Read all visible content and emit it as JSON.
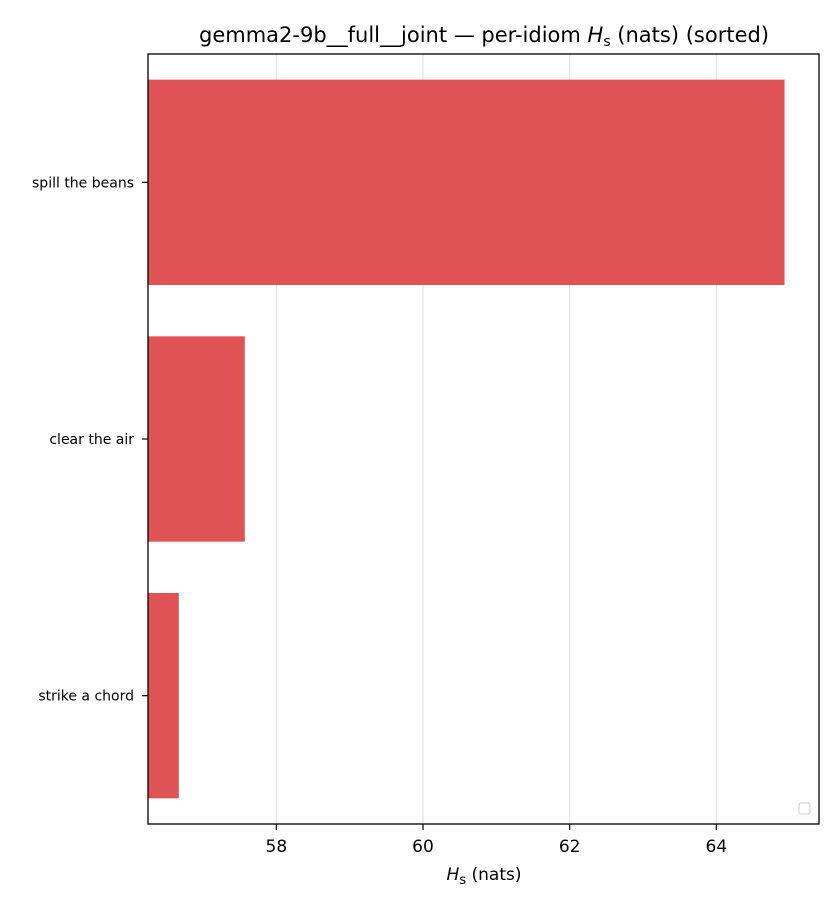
{
  "chart_data": {
    "type": "bar",
    "orientation": "horizontal",
    "title_main": "gemma2-9b__full__joint — per-idiom ",
    "title_sym": "H",
    "title_sub": "s",
    "title_tail": " (nats) (sorted)",
    "xlabel_sym": "H",
    "xlabel_sub": "s",
    "xlabel_tail": " (nats)",
    "categories": [
      "spill the beans",
      "clear the air",
      "strike a chord"
    ],
    "values": [
      64.93,
      57.57,
      56.67
    ],
    "xlim": [
      56.25,
      65.4
    ],
    "xticks": [
      "58",
      "60",
      "62",
      "64"
    ],
    "grid": true,
    "bar_color": "#e05355",
    "legend": "lower right (empty)"
  }
}
